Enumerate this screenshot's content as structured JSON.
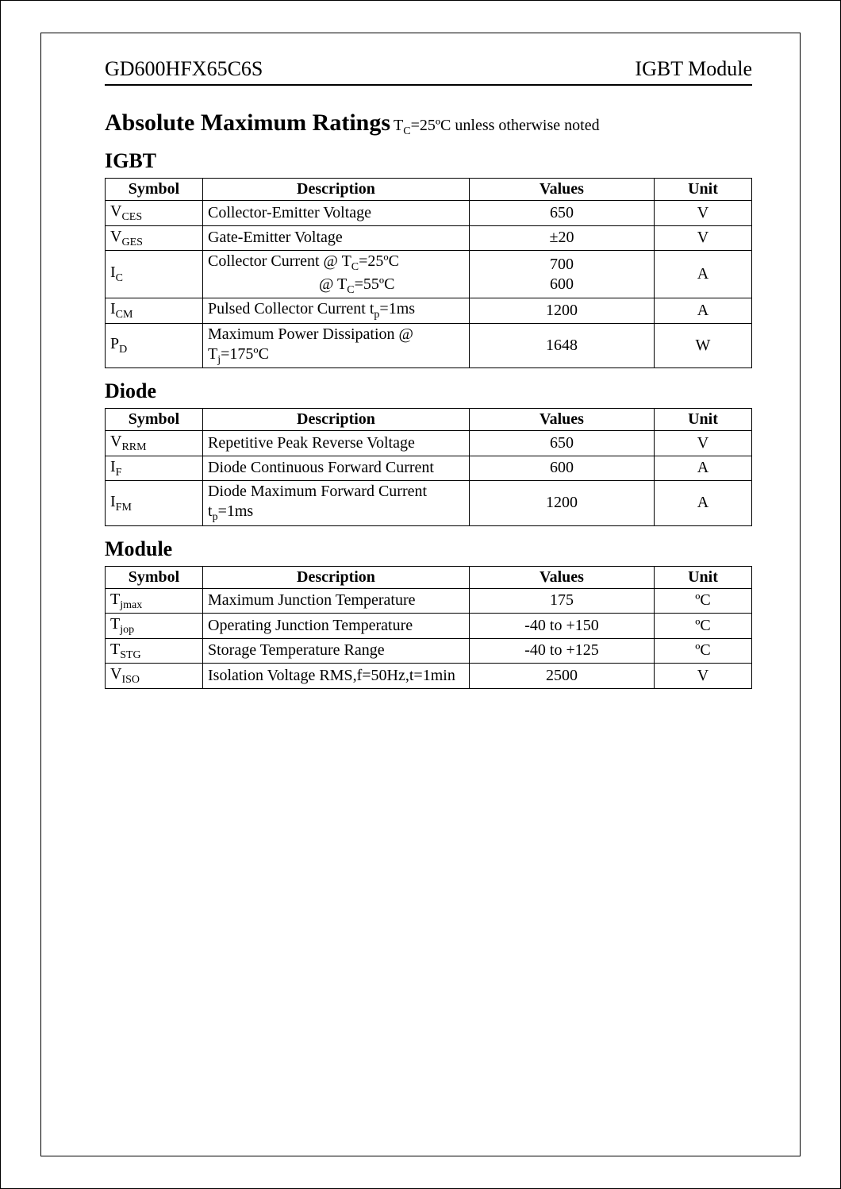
{
  "header": {
    "part_number": "GD600HFX65C6S",
    "module_type": "IGBT Module"
  },
  "title": {
    "main": "Absolute Maximum Ratings",
    "note_prefix": "T",
    "note_sub": "C",
    "note_rest": "=25ºC unless otherwise noted"
  },
  "columns": {
    "symbol": "Symbol",
    "description": "Description",
    "values": "Values",
    "unit": "Unit"
  },
  "sections": {
    "igbt": {
      "title": "IGBT",
      "rows": [
        {
          "sym_base": "V",
          "sym_sub": "CES",
          "desc": "Collector-Emitter Voltage",
          "value": "650",
          "unit": "V"
        },
        {
          "sym_base": "V",
          "sym_sub": "GES",
          "desc": "Gate-Emitter Voltage",
          "value": "±20",
          "unit": "V"
        },
        {
          "sym_base": "I",
          "sym_sub": "C",
          "desc_line1": "Collector Current  @ T",
          "desc_line1_sub": "C",
          "desc_line1_tail": "=25ºC",
          "desc_line2_pre": "@ T",
          "desc_line2_sub": "C",
          "desc_line2_tail": "=55ºC",
          "value_line1": "700",
          "value_line2": "600",
          "unit": "A",
          "multi": true
        },
        {
          "sym_base": "I",
          "sym_sub": "CM",
          "desc_pre": "Pulsed Collector Current  t",
          "desc_sub": "p",
          "desc_tail": "=1ms",
          "value": "1200",
          "unit": "A"
        },
        {
          "sym_base": "P",
          "sym_sub": "D",
          "desc_pre": "Maximum Power Dissipation  @ T",
          "desc_sub": "j",
          "desc_tail": "=175ºC",
          "value": "1648",
          "unit": "W"
        }
      ]
    },
    "diode": {
      "title": "Diode",
      "rows": [
        {
          "sym_base": "V",
          "sym_sub": "RRM",
          "desc": "Repetitive Peak Reverse Voltage",
          "value": "650",
          "unit": "V"
        },
        {
          "sym_base": "I",
          "sym_sub": "F",
          "desc": "Diode Continuous Forward Current",
          "value": "600",
          "unit": "A"
        },
        {
          "sym_base": "I",
          "sym_sub": "FM",
          "desc_pre": "Diode Maximum Forward Current  t",
          "desc_sub": "p",
          "desc_tail": "=1ms",
          "value": "1200",
          "unit": "A"
        }
      ]
    },
    "module": {
      "title": "Module",
      "rows": [
        {
          "sym_base": "T",
          "sym_sub": "jmax",
          "desc": "Maximum Junction Temperature",
          "value": "175",
          "unit": "ºC"
        },
        {
          "sym_base": "T",
          "sym_sub": "jop",
          "desc": "Operating Junction Temperature",
          "value": "-40 to +150",
          "unit": "ºC"
        },
        {
          "sym_base": "T",
          "sym_sub": "STG",
          "desc": "Storage Temperature Range",
          "value": "-40 to +125",
          "unit": "ºC"
        },
        {
          "sym_base": "V",
          "sym_sub": "ISO",
          "desc": "Isolation Voltage  RMS,f=50Hz,t=1min",
          "value": "2500",
          "unit": "V"
        }
      ]
    }
  }
}
